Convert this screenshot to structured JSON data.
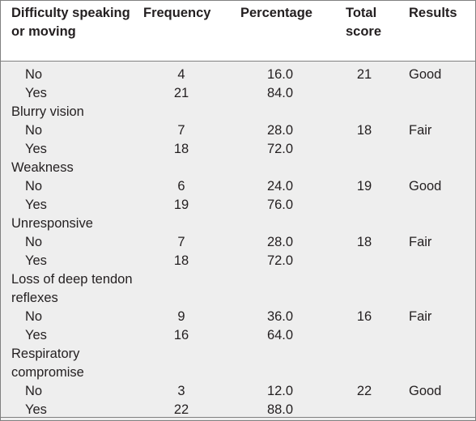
{
  "headers": {
    "col1": "Difficulty speaking or moving",
    "col2": "Frequency",
    "col3": "Percentage",
    "col4": "Total score",
    "col5": "Results"
  },
  "groups": [
    {
      "label": "",
      "rows": [
        {
          "answer": "No",
          "frequency": "4",
          "percentage": "16.0",
          "total": "21",
          "result": "Good"
        },
        {
          "answer": "Yes",
          "frequency": "21",
          "percentage": "84.0",
          "total": "",
          "result": ""
        }
      ]
    },
    {
      "label": "Blurry vision",
      "rows": [
        {
          "answer": "No",
          "frequency": "7",
          "percentage": "28.0",
          "total": "18",
          "result": "Fair"
        },
        {
          "answer": "Yes",
          "frequency": "18",
          "percentage": "72.0",
          "total": "",
          "result": ""
        }
      ]
    },
    {
      "label": "Weakness",
      "rows": [
        {
          "answer": "No",
          "frequency": "6",
          "percentage": "24.0",
          "total": "19",
          "result": "Good"
        },
        {
          "answer": "Yes",
          "frequency": "19",
          "percentage": "76.0",
          "total": "",
          "result": ""
        }
      ]
    },
    {
      "label": "Unresponsive",
      "rows": [
        {
          "answer": "No",
          "frequency": "7",
          "percentage": "28.0",
          "total": "18",
          "result": "Fair"
        },
        {
          "answer": "Yes",
          "frequency": "18",
          "percentage": "72.0",
          "total": "",
          "result": ""
        }
      ]
    },
    {
      "label": "Loss of deep tendon reflexes",
      "rows": [
        {
          "answer": "No",
          "frequency": "9",
          "percentage": "36.0",
          "total": "16",
          "result": "Fair"
        },
        {
          "answer": "Yes",
          "frequency": "16",
          "percentage": "64.0",
          "total": "",
          "result": ""
        }
      ]
    },
    {
      "label": "Respiratory compromise",
      "rows": [
        {
          "answer": "No",
          "frequency": "3",
          "percentage": "12.0",
          "total": "22",
          "result": "Good"
        },
        {
          "answer": "Yes",
          "frequency": "22",
          "percentage": "88.0",
          "total": "",
          "result": ""
        }
      ]
    }
  ]
}
